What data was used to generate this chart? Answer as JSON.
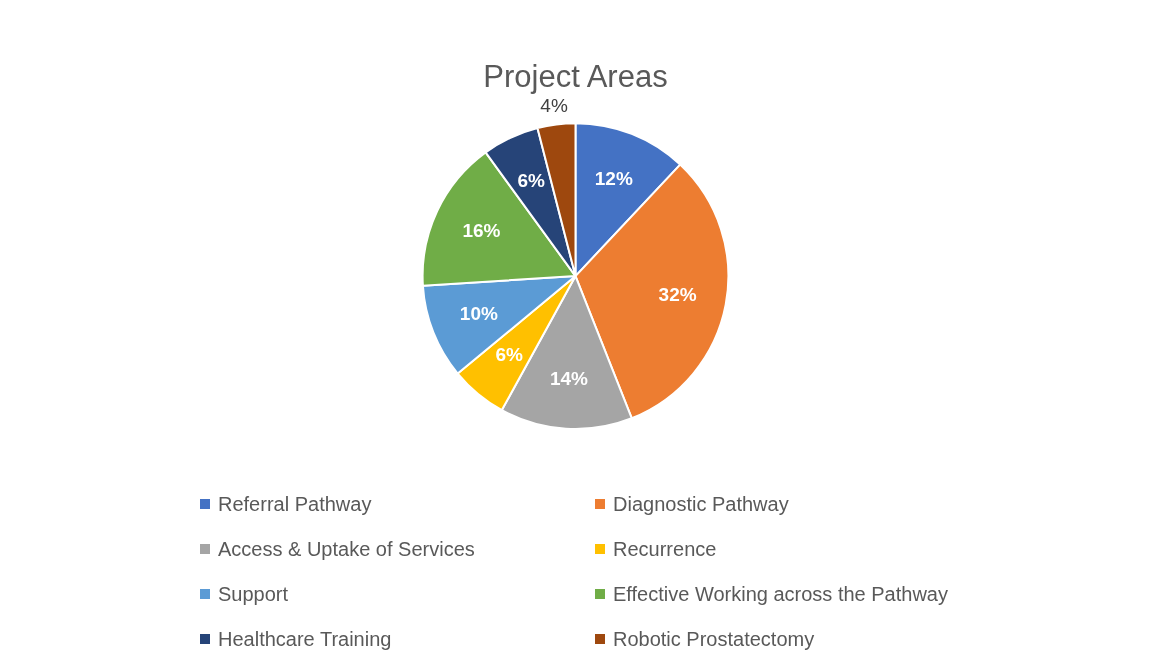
{
  "chart_data": {
    "type": "pie",
    "title": "Project Areas",
    "categories": [
      "Referral Pathway",
      "Diagnostic Pathway",
      "Access & Uptake of Services",
      "Recurrence",
      "Support",
      "Effective Working across the Pathway",
      "Healthcare Training",
      "Robotic Prostatectomy"
    ],
    "values": [
      12,
      32,
      14,
      6,
      10,
      16,
      6,
      4
    ],
    "colors": [
      "#4472c4",
      "#ed7d31",
      "#a5a5a5",
      "#ffc000",
      "#5b9bd5",
      "#70ad47",
      "#264478",
      "#9e480e"
    ],
    "value_labels": [
      "12%",
      "32%",
      "14%",
      "6%",
      "10%",
      "16%",
      "6%",
      "4%"
    ],
    "legend": "bottom"
  }
}
